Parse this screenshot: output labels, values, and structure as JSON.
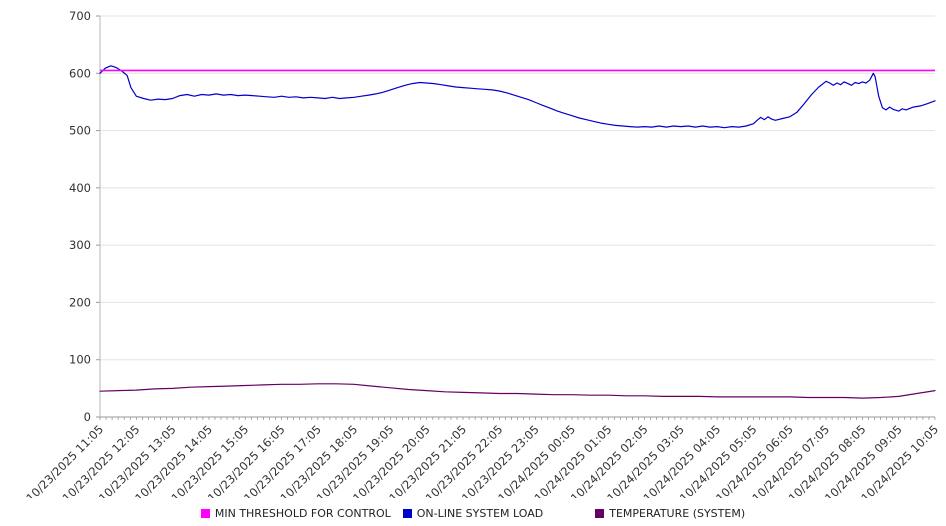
{
  "chart_data": {
    "type": "line",
    "title": "",
    "xlabel": "",
    "ylabel": "",
    "ylim": [
      0,
      700
    ],
    "y_ticks": [
      0,
      100,
      200,
      300,
      400,
      500,
      600,
      700
    ],
    "grid": true,
    "legend_position": "bottom",
    "x_tick_labels": [
      "10/23/2025 11:05",
      "10/23/2025 12:05",
      "10/23/2025 13:05",
      "10/23/2025 14:05",
      "10/23/2025 15:05",
      "10/23/2025 16:05",
      "10/23/2025 17:05",
      "10/23/2025 18:05",
      "10/23/2025 19:05",
      "10/23/2025 20:05",
      "10/23/2025 21:05",
      "10/23/2025 22:05",
      "10/23/2025 23:05",
      "10/24/2025 00:05",
      "10/24/2025 01:05",
      "10/24/2025 02:05",
      "10/24/2025 03:05",
      "10/24/2025 04:05",
      "10/24/2025 05:05",
      "10/24/2025 06:05",
      "10/24/2025 07:05",
      "10/24/2025 08:05",
      "10/24/2025 09:05",
      "10/24/2025 10:05"
    ],
    "x_hours_range": [
      0,
      23
    ],
    "series": [
      {
        "name": "MIN THRESHOLD FOR CONTROL",
        "color": "#ff00ff",
        "kind": "threshold",
        "value": 605
      },
      {
        "name": "ON-LINE SYSTEM LOAD",
        "color": "#0000cd",
        "kind": "line",
        "points": [
          [
            0,
            600
          ],
          [
            0.15,
            609
          ],
          [
            0.3,
            613
          ],
          [
            0.45,
            610
          ],
          [
            0.6,
            604
          ],
          [
            0.75,
            596
          ],
          [
            0.85,
            575
          ],
          [
            1,
            560
          ],
          [
            1.2,
            556
          ],
          [
            1.4,
            553
          ],
          [
            1.6,
            555
          ],
          [
            1.8,
            554
          ],
          [
            2,
            556
          ],
          [
            2.2,
            561
          ],
          [
            2.4,
            563
          ],
          [
            2.6,
            560
          ],
          [
            2.8,
            563
          ],
          [
            3,
            562
          ],
          [
            3.2,
            564
          ],
          [
            3.4,
            562
          ],
          [
            3.6,
            563
          ],
          [
            3.8,
            561
          ],
          [
            4,
            562
          ],
          [
            4.2,
            561
          ],
          [
            4.4,
            560
          ],
          [
            4.6,
            559
          ],
          [
            4.8,
            558
          ],
          [
            5,
            560
          ],
          [
            5.2,
            558
          ],
          [
            5.4,
            559
          ],
          [
            5.6,
            557
          ],
          [
            5.8,
            558
          ],
          [
            6,
            557
          ],
          [
            6.2,
            556
          ],
          [
            6.4,
            558
          ],
          [
            6.6,
            556
          ],
          [
            6.8,
            557
          ],
          [
            7,
            558
          ],
          [
            7.2,
            560
          ],
          [
            7.4,
            562
          ],
          [
            7.6,
            564
          ],
          [
            7.8,
            567
          ],
          [
            8,
            571
          ],
          [
            8.2,
            575
          ],
          [
            8.4,
            579
          ],
          [
            8.6,
            582
          ],
          [
            8.8,
            584
          ],
          [
            9,
            583
          ],
          [
            9.2,
            582
          ],
          [
            9.4,
            580
          ],
          [
            9.6,
            578
          ],
          [
            9.8,
            576
          ],
          [
            10,
            575
          ],
          [
            10.2,
            574
          ],
          [
            10.4,
            573
          ],
          [
            10.6,
            572
          ],
          [
            10.8,
            571
          ],
          [
            11,
            569
          ],
          [
            11.2,
            566
          ],
          [
            11.4,
            562
          ],
          [
            11.6,
            558
          ],
          [
            11.8,
            554
          ],
          [
            12,
            549
          ],
          [
            12.2,
            544
          ],
          [
            12.4,
            539
          ],
          [
            12.6,
            534
          ],
          [
            12.8,
            530
          ],
          [
            13,
            526
          ],
          [
            13.2,
            522
          ],
          [
            13.4,
            519
          ],
          [
            13.6,
            516
          ],
          [
            13.8,
            513
          ],
          [
            14,
            511
          ],
          [
            14.2,
            509
          ],
          [
            14.4,
            508
          ],
          [
            14.6,
            507
          ],
          [
            14.8,
            506
          ],
          [
            15,
            507
          ],
          [
            15.2,
            506
          ],
          [
            15.4,
            508
          ],
          [
            15.6,
            506
          ],
          [
            15.8,
            508
          ],
          [
            16,
            507
          ],
          [
            16.2,
            508
          ],
          [
            16.4,
            506
          ],
          [
            16.6,
            508
          ],
          [
            16.8,
            506
          ],
          [
            17,
            507
          ],
          [
            17.2,
            505
          ],
          [
            17.4,
            507
          ],
          [
            17.6,
            506
          ],
          [
            17.8,
            508
          ],
          [
            18,
            512
          ],
          [
            18.1,
            518
          ],
          [
            18.2,
            523
          ],
          [
            18.3,
            519
          ],
          [
            18.4,
            524
          ],
          [
            18.5,
            520
          ],
          [
            18.6,
            518
          ],
          [
            18.8,
            521
          ],
          [
            19,
            524
          ],
          [
            19.2,
            532
          ],
          [
            19.4,
            547
          ],
          [
            19.6,
            563
          ],
          [
            19.8,
            576
          ],
          [
            20,
            586
          ],
          [
            20.1,
            583
          ],
          [
            20.2,
            579
          ],
          [
            20.3,
            583
          ],
          [
            20.4,
            580
          ],
          [
            20.5,
            585
          ],
          [
            20.6,
            582
          ],
          [
            20.7,
            579
          ],
          [
            20.8,
            584
          ],
          [
            20.9,
            582
          ],
          [
            21,
            585
          ],
          [
            21.1,
            583
          ],
          [
            21.2,
            588
          ],
          [
            21.3,
            600
          ],
          [
            21.35,
            594
          ],
          [
            21.45,
            560
          ],
          [
            21.55,
            540
          ],
          [
            21.65,
            536
          ],
          [
            21.75,
            541
          ],
          [
            21.85,
            537
          ],
          [
            22,
            534
          ],
          [
            22.1,
            538
          ],
          [
            22.2,
            536
          ],
          [
            22.4,
            541
          ],
          [
            22.6,
            543
          ],
          [
            22.8,
            547
          ],
          [
            23,
            552
          ]
        ]
      },
      {
        "name": "TEMPERATURE (SYSTEM)",
        "color": "#660066",
        "kind": "line",
        "points": [
          [
            0,
            45
          ],
          [
            0.5,
            46
          ],
          [
            1,
            47
          ],
          [
            1.5,
            49
          ],
          [
            2,
            50
          ],
          [
            2.5,
            52
          ],
          [
            3,
            53
          ],
          [
            3.5,
            54
          ],
          [
            4,
            55
          ],
          [
            4.5,
            56
          ],
          [
            5,
            57
          ],
          [
            5.5,
            57
          ],
          [
            6,
            58
          ],
          [
            6.5,
            58
          ],
          [
            7,
            57
          ],
          [
            7.5,
            54
          ],
          [
            8,
            51
          ],
          [
            8.5,
            48
          ],
          [
            9,
            46
          ],
          [
            9.5,
            44
          ],
          [
            10,
            43
          ],
          [
            10.5,
            42
          ],
          [
            11,
            41
          ],
          [
            11.5,
            41
          ],
          [
            12,
            40
          ],
          [
            12.5,
            39
          ],
          [
            13,
            39
          ],
          [
            13.5,
            38
          ],
          [
            14,
            38
          ],
          [
            14.5,
            37
          ],
          [
            15,
            37
          ],
          [
            15.5,
            36
          ],
          [
            16,
            36
          ],
          [
            16.5,
            36
          ],
          [
            17,
            35
          ],
          [
            17.5,
            35
          ],
          [
            18,
            35
          ],
          [
            18.5,
            35
          ],
          [
            19,
            35
          ],
          [
            19.5,
            34
          ],
          [
            20,
            34
          ],
          [
            20.5,
            34
          ],
          [
            21,
            33
          ],
          [
            21.5,
            34
          ],
          [
            22,
            36
          ],
          [
            22.5,
            41
          ],
          [
            23,
            46
          ]
        ]
      }
    ]
  }
}
